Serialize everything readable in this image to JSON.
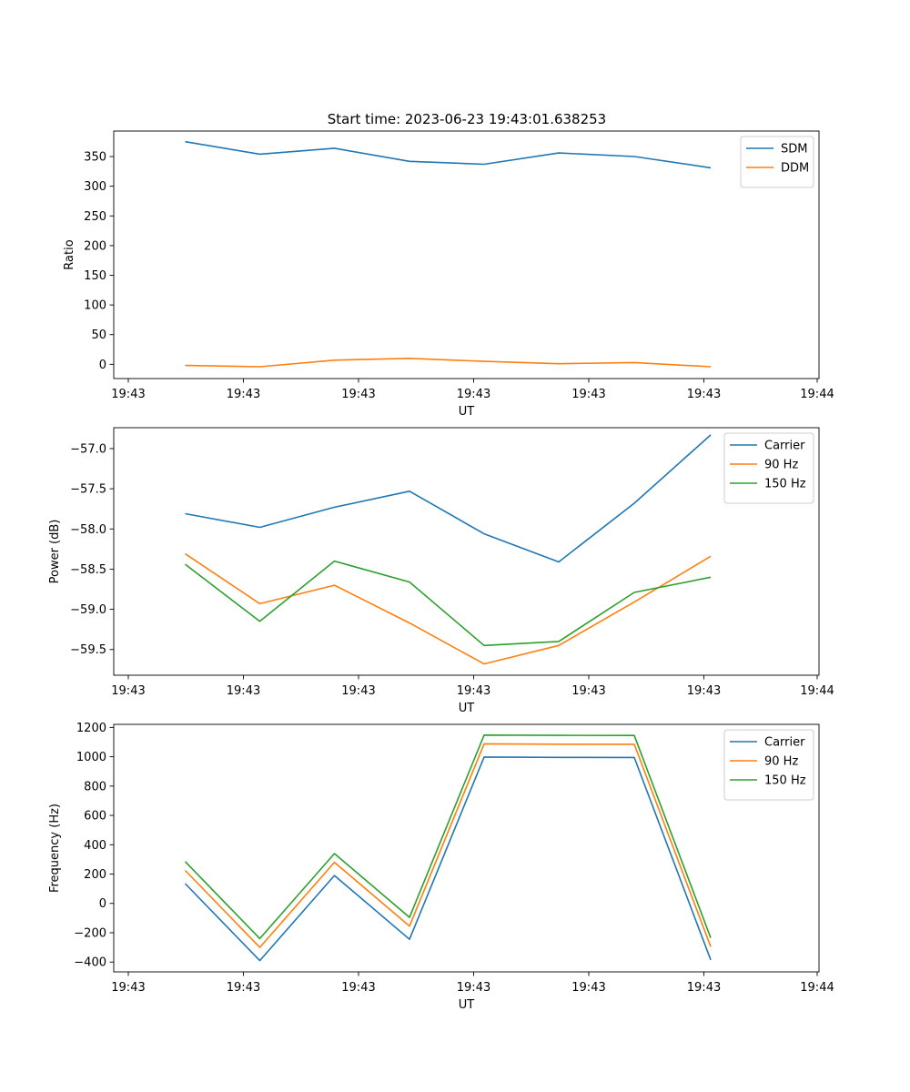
{
  "figure": {
    "suptitle": "Start time: 2023-06-23 19:43:01.638253"
  },
  "colors": {
    "blue": "#1f77b4",
    "orange": "#ff7f0e",
    "green": "#2ca02c"
  },
  "chart_data": [
    {
      "type": "line",
      "title": "Start time: 2023-06-23 19:43:01.638253",
      "xlabel": "UT",
      "ylabel": "Ratio",
      "x_tick_labels": [
        "19:43",
        "19:43",
        "19:43",
        "19:43",
        "19:43",
        "19:43",
        "19:44"
      ],
      "y_ticks": [
        0,
        50,
        100,
        150,
        200,
        250,
        300,
        350
      ],
      "ylim": [
        -24,
        393
      ],
      "grid": false,
      "legend": "top-right",
      "series": [
        {
          "name": "SDM",
          "color": "#1f77b4",
          "values": [
            375,
            354,
            364,
            342,
            337,
            356,
            350,
            331
          ]
        },
        {
          "name": "DDM",
          "color": "#ff7f0e",
          "values": [
            -2,
            -4,
            7,
            10,
            5,
            1,
            3,
            -4
          ]
        }
      ]
    },
    {
      "type": "line",
      "title": "",
      "xlabel": "UT",
      "ylabel": "Power (dB)",
      "x_tick_labels": [
        "19:43",
        "19:43",
        "19:43",
        "19:43",
        "19:43",
        "19:43",
        "19:44"
      ],
      "y_ticks": [
        -59.5,
        -59.0,
        -58.5,
        -58.0,
        -57.5,
        -57.0
      ],
      "y_tick_labels": [
        "−59.5",
        "−59.0",
        "−58.5",
        "−58.0",
        "−57.5",
        "−57.0"
      ],
      "ylim": [
        -59.82,
        -56.74
      ],
      "grid": false,
      "legend": "top-right",
      "series": [
        {
          "name": "Carrier",
          "color": "#1f77b4",
          "values": [
            -57.81,
            -57.98,
            -57.73,
            -57.53,
            -58.06,
            -58.41,
            -57.68,
            -56.83
          ]
        },
        {
          "name": "90 Hz",
          "color": "#ff7f0e",
          "values": [
            -58.31,
            -58.93,
            -58.7,
            -59.17,
            -59.68,
            -59.45,
            -58.91,
            -58.34
          ]
        },
        {
          "name": "150 Hz",
          "color": "#2ca02c",
          "values": [
            -58.44,
            -59.15,
            -58.4,
            -58.66,
            -59.45,
            -59.4,
            -58.79,
            -58.6
          ]
        }
      ]
    },
    {
      "type": "line",
      "title": "",
      "xlabel": "UT",
      "ylabel": "Frequency (Hz)",
      "x_tick_labels": [
        "19:43",
        "19:43",
        "19:43",
        "19:43",
        "19:43",
        "19:43",
        "19:44"
      ],
      "y_ticks": [
        -400,
        -200,
        0,
        200,
        400,
        600,
        800,
        1000,
        1200
      ],
      "y_tick_labels": [
        "−400",
        "−200",
        "0",
        "200",
        "400",
        "600",
        "800",
        "1000",
        "1200"
      ],
      "ylim": [
        -467,
        1221
      ],
      "grid": false,
      "legend": "top-right",
      "series": [
        {
          "name": "Carrier",
          "color": "#1f77b4",
          "values": [
            135,
            -390,
            190,
            -245,
            998,
            996,
            995,
            -385
          ]
        },
        {
          "name": "90 Hz",
          "color": "#ff7f0e",
          "values": [
            225,
            -300,
            280,
            -155,
            1088,
            1086,
            1085,
            -295
          ]
        },
        {
          "name": "150 Hz",
          "color": "#2ca02c",
          "values": [
            285,
            -240,
            340,
            -95,
            1148,
            1146,
            1145,
            -235
          ]
        }
      ]
    }
  ]
}
